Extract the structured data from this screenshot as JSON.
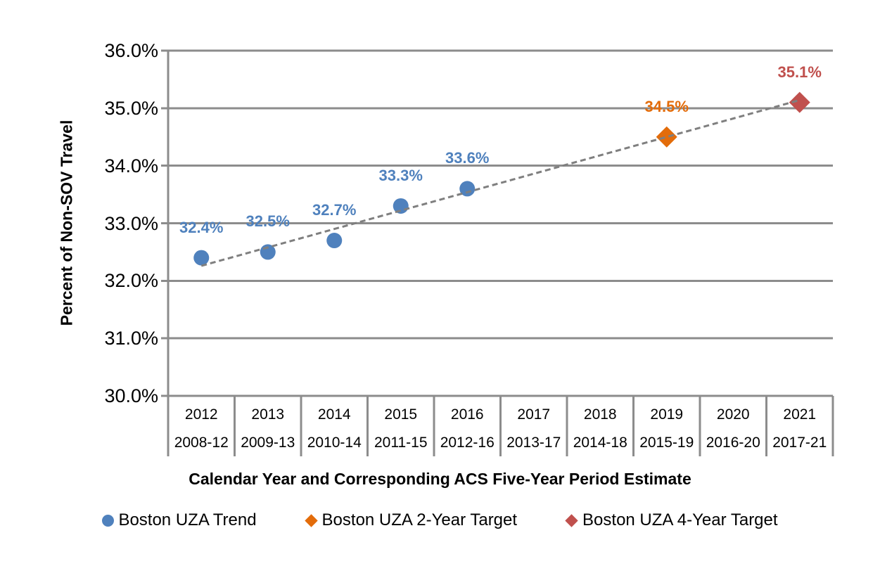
{
  "chart_data": {
    "type": "scatter",
    "title": "",
    "xlabel": "Calendar Year and Corresponding ACS Five-Year Period Estimate",
    "ylabel": "Percent of Non-SOV Travel",
    "ylim": [
      30.0,
      36.0
    ],
    "grid": "horizontal",
    "legend_position": "bottom",
    "y_ticks": [
      {
        "value": 36.0,
        "label": "36.0%"
      },
      {
        "value": 35.0,
        "label": "35.0%"
      },
      {
        "value": 34.0,
        "label": "34.0%"
      },
      {
        "value": 33.0,
        "label": "33.0%"
      },
      {
        "value": 32.0,
        "label": "32.0%"
      },
      {
        "value": 31.0,
        "label": "31.0%"
      },
      {
        "value": 30.0,
        "label": "30.0%"
      }
    ],
    "categories": [
      {
        "year": "2012",
        "period": "2008-12"
      },
      {
        "year": "2013",
        "period": "2009-13"
      },
      {
        "year": "2014",
        "period": "2010-14"
      },
      {
        "year": "2015",
        "period": "2011-15"
      },
      {
        "year": "2016",
        "period": "2012-16"
      },
      {
        "year": "2017",
        "period": "2013-17"
      },
      {
        "year": "2018",
        "period": "2014-18"
      },
      {
        "year": "2019",
        "period": "2015-19"
      },
      {
        "year": "2020",
        "period": "2016-20"
      },
      {
        "year": "2021",
        "period": "2017-21"
      }
    ],
    "series": [
      {
        "name": "Boston UZA Trend",
        "marker": "circle",
        "color": "#4F81BD",
        "points": [
          {
            "category": "2012",
            "value": 32.4,
            "label": "32.4%"
          },
          {
            "category": "2013",
            "value": 32.5,
            "label": "32.5%"
          },
          {
            "category": "2014",
            "value": 32.7,
            "label": "32.7%"
          },
          {
            "category": "2015",
            "value": 33.3,
            "label": "33.3%"
          },
          {
            "category": "2016",
            "value": 33.6,
            "label": "33.6%"
          }
        ]
      },
      {
        "name": "Boston UZA 2-Year Target",
        "marker": "diamond",
        "color": "#E36C0A",
        "points": [
          {
            "category": "2019",
            "value": 34.5,
            "label": "34.5%"
          }
        ]
      },
      {
        "name": "Boston UZA 4-Year Target",
        "marker": "diamond",
        "color": "#C0504D",
        "points": [
          {
            "category": "2021",
            "value": 35.1,
            "label": "35.1%"
          }
        ]
      }
    ],
    "trendline": {
      "style": "dashed",
      "color": "#7F7F7F",
      "start": {
        "category": "2012",
        "value": 32.26
      },
      "end": {
        "category": "2021",
        "value": 35.14
      }
    },
    "colors": {
      "gridline": "#8C8C8C",
      "axis": "#8C8C8C"
    }
  },
  "legend": {
    "items": [
      {
        "label": "Boston UZA Trend",
        "marker": "circle",
        "color": "#4F81BD"
      },
      {
        "label": "Boston UZA 2-Year Target",
        "marker": "diamond",
        "color": "#E36C0A"
      },
      {
        "label": "Boston UZA 4-Year Target",
        "marker": "diamond",
        "color": "#C0504D"
      }
    ]
  }
}
